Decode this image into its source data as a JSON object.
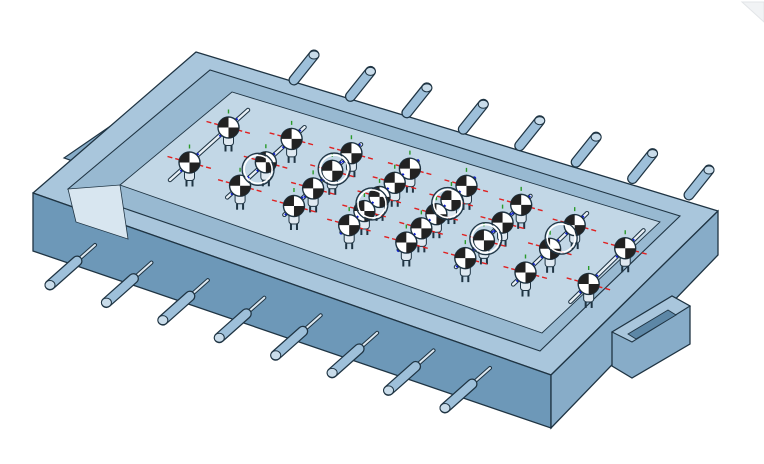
{
  "viewport": {
    "name": "3d-viewport",
    "model": "foosball-table",
    "view_cube_icon": "view-cube-corner-icon"
  },
  "colors": {
    "background": "#ffffff",
    "body_top": "#a9c6dc",
    "body_front": "#6d98b8",
    "body_side": "#87acc8",
    "interior": "#c2d7e6",
    "edge": "#1f3443",
    "handle": "#9ec0da",
    "mate_x": "#e02020",
    "mate_y": "#2a9a2a",
    "mate_z": "#1020d0"
  },
  "counts": {
    "rods": 8,
    "far_handles": 8,
    "near_handles": 8
  }
}
